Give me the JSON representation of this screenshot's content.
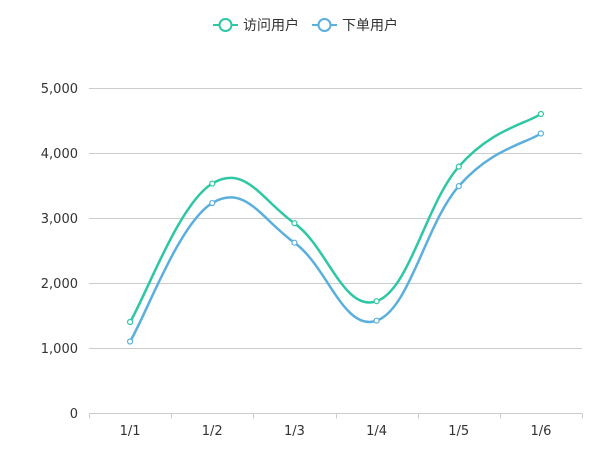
{
  "chart_data": {
    "type": "line",
    "smooth": true,
    "categories": [
      "1/1",
      "1/2",
      "1/3",
      "1/4",
      "1/5",
      "1/6"
    ],
    "series": [
      {
        "name": "访问用户",
        "color": "#2ec7a3",
        "values": [
          1400,
          3530,
          2920,
          1720,
          3790,
          4600
        ]
      },
      {
        "name": "下单用户",
        "color": "#5aafdd",
        "values": [
          1100,
          3230,
          2620,
          1420,
          3490,
          4300
        ]
      }
    ],
    "ylim": [
      0,
      5000
    ],
    "yticks": [
      "0",
      "1,000",
      "2,000",
      "3,000",
      "4,000",
      "5,000"
    ],
    "grid": true,
    "legend": "top-center",
    "colors": {
      "axis": "#cccccc",
      "grid": "#cccccc",
      "tick_text": "#333333"
    }
  }
}
